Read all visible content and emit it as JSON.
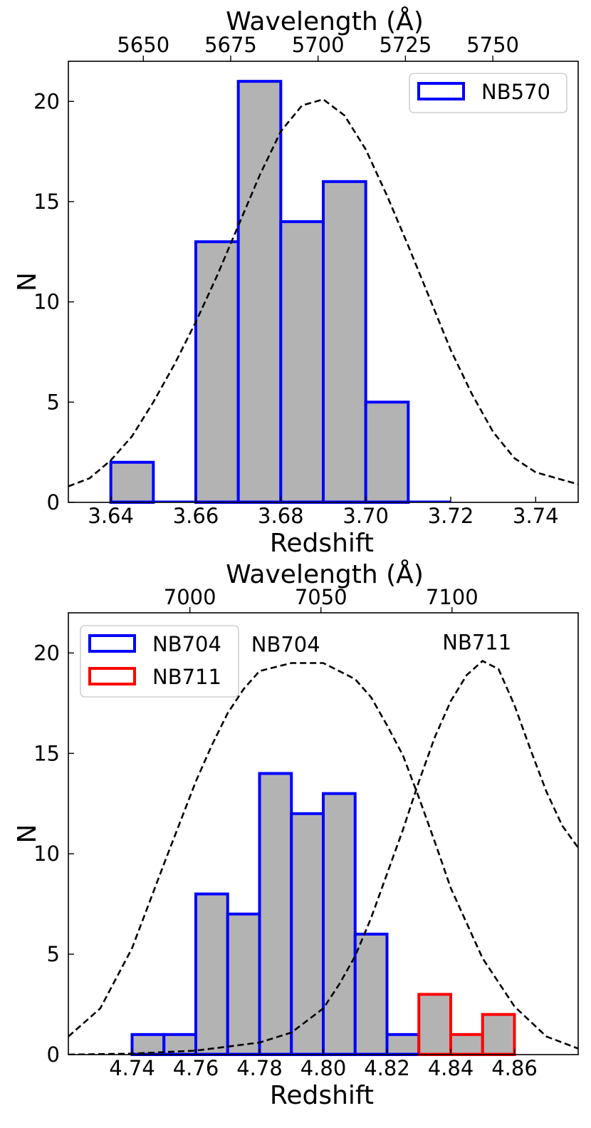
{
  "chart_data": [
    {
      "type": "bar",
      "panel": "top",
      "xlabel": "Redshift",
      "ylabel": "N",
      "top_xlabel": "Wavelength (Å)",
      "xlim": [
        3.63,
        3.75
      ],
      "ylim": [
        0,
        22
      ],
      "x_ticks": [
        3.64,
        3.66,
        3.68,
        3.7,
        3.72,
        3.74
      ],
      "x_tick_labels": [
        "3.64",
        "3.66",
        "3.68",
        "3.70",
        "3.72",
        "3.74"
      ],
      "y_ticks": [
        0,
        5,
        10,
        15,
        20
      ],
      "y_tick_labels": [
        "0",
        "5",
        "10",
        "15",
        "20"
      ],
      "top_ticks": [
        5650,
        5675,
        5700,
        5725,
        5750
      ],
      "top_tick_labels": [
        "5650",
        "5675",
        "5700",
        "5725",
        "5750"
      ],
      "bin_width": 0.01,
      "legend_position": "top-right",
      "series": [
        {
          "name": "NB570",
          "color": "#0000ff",
          "bin_starts": [
            3.64,
            3.65,
            3.66,
            3.67,
            3.68,
            3.69,
            3.7,
            3.71
          ],
          "values": [
            2,
            0,
            13,
            21,
            14,
            16,
            5,
            0
          ]
        }
      ],
      "filter_curves": [
        {
          "label": "",
          "x": [
            3.63,
            3.635,
            3.64,
            3.645,
            3.65,
            3.655,
            3.66,
            3.665,
            3.67,
            3.675,
            3.68,
            3.685,
            3.69,
            3.695,
            3.7,
            3.705,
            3.71,
            3.715,
            3.72,
            3.725,
            3.73,
            3.735,
            3.74,
            3.745,
            3.75
          ],
          "y": [
            0.8,
            1.2,
            2.1,
            3.3,
            5.0,
            6.9,
            9.0,
            11.3,
            13.8,
            16.3,
            18.5,
            19.8,
            20.1,
            19.3,
            17.6,
            15.3,
            12.8,
            10.2,
            7.6,
            5.4,
            3.5,
            2.2,
            1.5,
            1.2,
            0.9
          ]
        }
      ]
    },
    {
      "type": "bar",
      "panel": "bottom",
      "xlabel": "Redshift",
      "ylabel": "N",
      "top_xlabel": "Wavelength (Å)",
      "xlim": [
        4.72,
        4.88
      ],
      "ylim": [
        0,
        22
      ],
      "x_ticks": [
        4.74,
        4.76,
        4.78,
        4.8,
        4.82,
        4.84,
        4.86
      ],
      "x_tick_labels": [
        "4.74",
        "4.76",
        "4.78",
        "4.80",
        "4.82",
        "4.84",
        "4.86"
      ],
      "y_ticks": [
        0,
        5,
        10,
        15,
        20
      ],
      "y_tick_labels": [
        "0",
        "5",
        "10",
        "15",
        "20"
      ],
      "top_ticks": [
        7000,
        7050,
        7100
      ],
      "top_tick_labels": [
        "7000",
        "7050",
        "7100"
      ],
      "bin_width": 0.01,
      "legend_position": "top-left",
      "series": [
        {
          "name": "NB704",
          "color": "#0000ff",
          "bin_starts": [
            4.74,
            4.75,
            4.76,
            4.77,
            4.78,
            4.79,
            4.8,
            4.81,
            4.82
          ],
          "values": [
            1,
            1,
            8,
            7,
            14,
            12,
            13,
            6,
            1
          ]
        },
        {
          "name": "NB711",
          "color": "#ff0000",
          "bin_starts": [
            4.83,
            4.84,
            4.85
          ],
          "values": [
            3,
            1,
            2
          ]
        }
      ],
      "filter_curves": [
        {
          "label": "NB704",
          "x": [
            4.72,
            4.73,
            4.74,
            4.75,
            4.76,
            4.765,
            4.77,
            4.775,
            4.78,
            4.79,
            4.8,
            4.81,
            4.815,
            4.82,
            4.825,
            4.83,
            4.835,
            4.84,
            4.85,
            4.86,
            4.87,
            4.88
          ],
          "y": [
            0.9,
            2.3,
            5.3,
            9.5,
            13.6,
            15.4,
            17.0,
            18.2,
            19.1,
            19.5,
            19.5,
            18.7,
            17.8,
            16.4,
            14.9,
            12.8,
            10.6,
            8.3,
            4.8,
            2.4,
            0.9,
            0.3
          ]
        },
        {
          "label": "NB711",
          "x": [
            4.72,
            4.74,
            4.76,
            4.78,
            4.79,
            4.8,
            4.805,
            4.81,
            4.815,
            4.82,
            4.825,
            4.83,
            4.835,
            4.84,
            4.845,
            4.85,
            4.855,
            4.86,
            4.865,
            4.87,
            4.875,
            4.88
          ],
          "y": [
            0.0,
            0.05,
            0.2,
            0.6,
            1.1,
            2.3,
            3.5,
            4.9,
            6.8,
            9.0,
            11.2,
            13.6,
            15.8,
            17.6,
            18.9,
            19.6,
            19.2,
            17.4,
            15.2,
            13.1,
            11.4,
            10.3
          ]
        }
      ]
    }
  ]
}
